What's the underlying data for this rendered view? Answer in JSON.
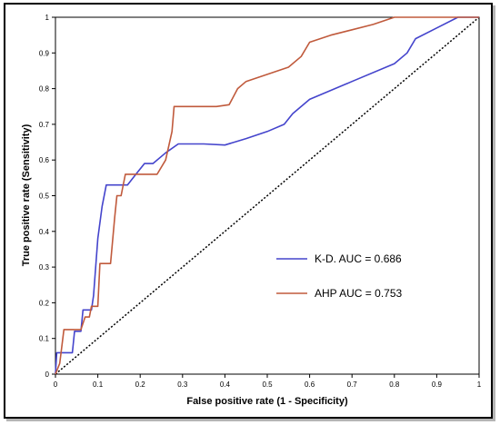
{
  "chart_data": {
    "type": "line",
    "title": "",
    "xlabel": "False positive rate (1 - Specificity)",
    "ylabel": "True positive rate (Sensitivity)",
    "xlim": [
      0,
      1
    ],
    "ylim": [
      0,
      1
    ],
    "x_ticks": [
      "0",
      "0.1",
      "0.2",
      "0.3",
      "0.4",
      "0.5",
      "0.6",
      "0.7",
      "0.8",
      "0.9",
      "1"
    ],
    "y_ticks": [
      "0",
      "0.1",
      "0.2",
      "0.3",
      "0.4",
      "0.5",
      "0.6",
      "0.7",
      "0.8",
      "0.9",
      "1"
    ],
    "grid": false,
    "legend_position": "right",
    "series": [
      {
        "name": "K-D.  AUC = 0.686",
        "color": "#4444cc",
        "points": [
          [
            0,
            0
          ],
          [
            0.003,
            0.06
          ],
          [
            0.02,
            0.06
          ],
          [
            0.04,
            0.06
          ],
          [
            0.045,
            0.12
          ],
          [
            0.06,
            0.12
          ],
          [
            0.065,
            0.18
          ],
          [
            0.085,
            0.18
          ],
          [
            0.09,
            0.22
          ],
          [
            0.1,
            0.38
          ],
          [
            0.11,
            0.47
          ],
          [
            0.12,
            0.53
          ],
          [
            0.15,
            0.53
          ],
          [
            0.17,
            0.53
          ],
          [
            0.19,
            0.56
          ],
          [
            0.21,
            0.59
          ],
          [
            0.23,
            0.59
          ],
          [
            0.26,
            0.62
          ],
          [
            0.29,
            0.645
          ],
          [
            0.35,
            0.645
          ],
          [
            0.4,
            0.642
          ],
          [
            0.45,
            0.66
          ],
          [
            0.5,
            0.68
          ],
          [
            0.54,
            0.7
          ],
          [
            0.56,
            0.73
          ],
          [
            0.6,
            0.77
          ],
          [
            0.7,
            0.82
          ],
          [
            0.8,
            0.87
          ],
          [
            0.83,
            0.9
          ],
          [
            0.85,
            0.94
          ],
          [
            0.9,
            0.97
          ],
          [
            0.95,
            1.0
          ],
          [
            1.0,
            1.0
          ]
        ]
      },
      {
        "name": "AHP  AUC = 0.753",
        "color": "#c05a3c",
        "points": [
          [
            0,
            0
          ],
          [
            0.01,
            0.03
          ],
          [
            0.02,
            0.125
          ],
          [
            0.06,
            0.125
          ],
          [
            0.07,
            0.16
          ],
          [
            0.08,
            0.16
          ],
          [
            0.085,
            0.19
          ],
          [
            0.1,
            0.19
          ],
          [
            0.105,
            0.31
          ],
          [
            0.13,
            0.31
          ],
          [
            0.14,
            0.44
          ],
          [
            0.145,
            0.5
          ],
          [
            0.155,
            0.5
          ],
          [
            0.165,
            0.56
          ],
          [
            0.2,
            0.56
          ],
          [
            0.24,
            0.56
          ],
          [
            0.26,
            0.6
          ],
          [
            0.275,
            0.68
          ],
          [
            0.28,
            0.75
          ],
          [
            0.33,
            0.75
          ],
          [
            0.38,
            0.75
          ],
          [
            0.41,
            0.755
          ],
          [
            0.43,
            0.8
          ],
          [
            0.45,
            0.82
          ],
          [
            0.5,
            0.84
          ],
          [
            0.55,
            0.86
          ],
          [
            0.58,
            0.89
          ],
          [
            0.6,
            0.93
          ],
          [
            0.65,
            0.95
          ],
          [
            0.7,
            0.965
          ],
          [
            0.75,
            0.98
          ],
          [
            0.8,
            1.0
          ],
          [
            1.0,
            1.0
          ]
        ]
      }
    ],
    "reference_line": {
      "style": "dotted",
      "color": "#000000",
      "points": [
        [
          0,
          0
        ],
        [
          1,
          1
        ]
      ]
    }
  }
}
